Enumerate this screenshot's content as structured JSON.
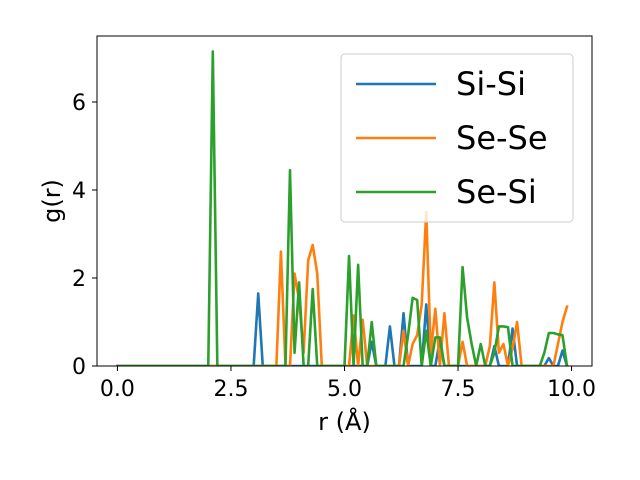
{
  "chart_data": {
    "type": "line",
    "xlabel": "r (Å)",
    "ylabel": "g(r)",
    "xlim": [
      -0.45,
      10.45
    ],
    "ylim": [
      0,
      7.5
    ],
    "x_ticks": [
      0.0,
      2.5,
      5.0,
      7.5,
      10.0
    ],
    "x_tick_labels": [
      "0.0",
      "2.5",
      "5.0",
      "7.5",
      "10.0"
    ],
    "y_ticks": [
      0,
      2,
      4,
      6
    ],
    "y_tick_labels": [
      "0",
      "2",
      "4",
      "6"
    ],
    "grid": false,
    "legend_position": "top-right",
    "series": [
      {
        "name": "Si-Si",
        "color": "#1f77b4",
        "x": [
          0.0,
          3.0,
          3.1,
          3.2,
          5.5,
          5.6,
          5.7,
          5.9,
          6.0,
          6.1,
          6.2,
          6.3,
          6.4,
          6.7,
          6.8,
          6.9,
          7.0,
          7.1,
          7.2,
          8.2,
          8.3,
          8.4,
          8.6,
          8.7,
          8.8,
          9.4,
          9.5,
          9.6,
          9.7,
          9.8,
          9.9
        ],
        "y": [
          0,
          0,
          1.65,
          0,
          0,
          0.55,
          0,
          0,
          0.9,
          0,
          0,
          1.2,
          0,
          0,
          1.4,
          0,
          0,
          0.6,
          0,
          0,
          0.45,
          0,
          0,
          0.85,
          0,
          0,
          0.18,
          0,
          0,
          0.35,
          0
        ]
      },
      {
        "name": "Se-Se",
        "color": "#ff7f0e",
        "x": [
          0.0,
          3.5,
          3.6,
          3.7,
          3.8,
          3.9,
          4.0,
          4.1,
          4.2,
          4.3,
          4.4,
          4.5,
          5.1,
          5.2,
          5.3,
          5.4,
          5.5,
          5.6,
          6.2,
          6.3,
          6.4,
          6.5,
          6.6,
          6.7,
          6.8,
          6.9,
          7.0,
          7.1,
          7.2,
          7.3,
          7.5,
          7.6,
          7.7,
          8.1,
          8.2,
          8.3,
          8.4,
          8.5,
          8.6,
          8.7,
          8.8,
          8.9,
          9.5,
          9.6,
          9.7,
          9.8,
          9.9
        ],
        "y": [
          0,
          0,
          2.6,
          0,
          0,
          2.1,
          1.5,
          0.3,
          2.4,
          2.75,
          2.1,
          0,
          0,
          1.15,
          0,
          1.05,
          0,
          0,
          0,
          0.8,
          0,
          0.5,
          0.7,
          1.4,
          3.5,
          0.3,
          1.3,
          0,
          1.2,
          0,
          0,
          0.55,
          0,
          0,
          0.45,
          1.9,
          0.3,
          0.5,
          0,
          0.4,
          1.0,
          0,
          0,
          0,
          0.5,
          1.0,
          1.35
        ]
      },
      {
        "name": "Se-Si",
        "color": "#2ca02c",
        "x": [
          0.0,
          2.0,
          2.1,
          2.2,
          3.7,
          3.8,
          3.9,
          4.0,
          4.1,
          4.2,
          4.3,
          4.4,
          4.5,
          5.0,
          5.1,
          5.2,
          5.3,
          5.4,
          5.5,
          5.6,
          5.7,
          6.3,
          6.4,
          6.5,
          6.6,
          6.7,
          6.8,
          6.9,
          7.0,
          7.1,
          7.2,
          7.5,
          7.6,
          7.7,
          7.8,
          7.9,
          8.0,
          8.1,
          8.2,
          8.3,
          8.4,
          8.5,
          8.6,
          8.7,
          8.8,
          9.2,
          9.3,
          9.4,
          9.5,
          9.6,
          9.7,
          9.8,
          9.9
        ],
        "y": [
          0,
          0,
          7.15,
          0,
          0,
          4.45,
          0.3,
          1.9,
          0,
          0,
          1.75,
          0,
          0,
          0,
          2.5,
          0,
          2.3,
          0,
          0,
          1.0,
          0,
          0,
          0.7,
          1.55,
          1.5,
          0,
          0.8,
          0,
          0.65,
          0.65,
          0,
          0,
          2.25,
          1.1,
          0.5,
          0,
          0.5,
          0,
          0,
          0.3,
          0.9,
          0.9,
          0.88,
          0,
          0,
          0,
          0,
          0.3,
          0.75,
          0.75,
          0.72,
          0.7,
          0
        ]
      }
    ]
  }
}
